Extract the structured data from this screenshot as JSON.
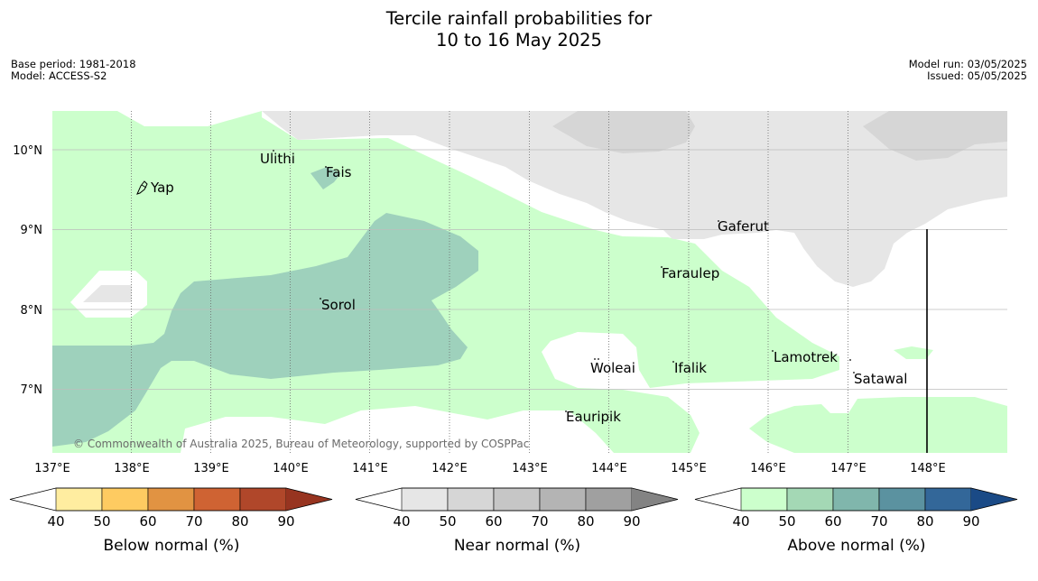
{
  "title": {
    "line1": "Tercile rainfall probabilities for",
    "line2": "10 to 16 May 2025"
  },
  "meta": {
    "base_period": "Base period: 1981-2018",
    "model": "Model: ACCESS-S2",
    "model_run": "Model run: 03/05/2025",
    "issued": "Issued: 05/05/2025"
  },
  "map": {
    "lon_labels": [
      "137°E",
      "138°E",
      "139°E",
      "140°E",
      "141°E",
      "142°E",
      "143°E",
      "144°E",
      "145°E",
      "146°E",
      "147°E",
      "148°E"
    ],
    "lat_labels": [
      "10°N",
      "9°N",
      "8°N",
      "7°N"
    ],
    "places": {
      "ulithi": "Ulithi",
      "fais": "Fais",
      "yap": "Yap",
      "gaferut": "Gaferut",
      "faraulep": "Faraulep",
      "sorol": "Sorol",
      "lamotrek": "Lamotrek",
      "woleai": "Woleai",
      "ifalik": "Ifalik",
      "satawal": "Satawal",
      "eauripik": "Eauripik"
    },
    "credit": "© Commonwealth of Australia 2025, Bureau of Meteorology, supported by COSPPac"
  },
  "colorbars": [
    {
      "title": "Below normal (%)",
      "ticks": [
        "40",
        "50",
        "60",
        "70",
        "80",
        "90"
      ],
      "colors": [
        "#ffeda0",
        "#fecb61",
        "#e19342",
        "#cf6333",
        "#b0472a",
        "#973420"
      ]
    },
    {
      "title": "Near normal (%)",
      "ticks": [
        "40",
        "50",
        "60",
        "70",
        "80",
        "90"
      ],
      "colors": [
        "#e6e6e6",
        "#d6d6d6",
        "#c6c6c6",
        "#b4b4b4",
        "#a0a0a0",
        "#838383"
      ]
    },
    {
      "title": "Above normal (%)",
      "ticks": [
        "40",
        "50",
        "60",
        "70",
        "80",
        "90"
      ],
      "colors": [
        "#ccffcc",
        "#a4d8b5",
        "#80b6ac",
        "#5b92a0",
        "#336799",
        "#1a4a86"
      ]
    }
  ]
}
